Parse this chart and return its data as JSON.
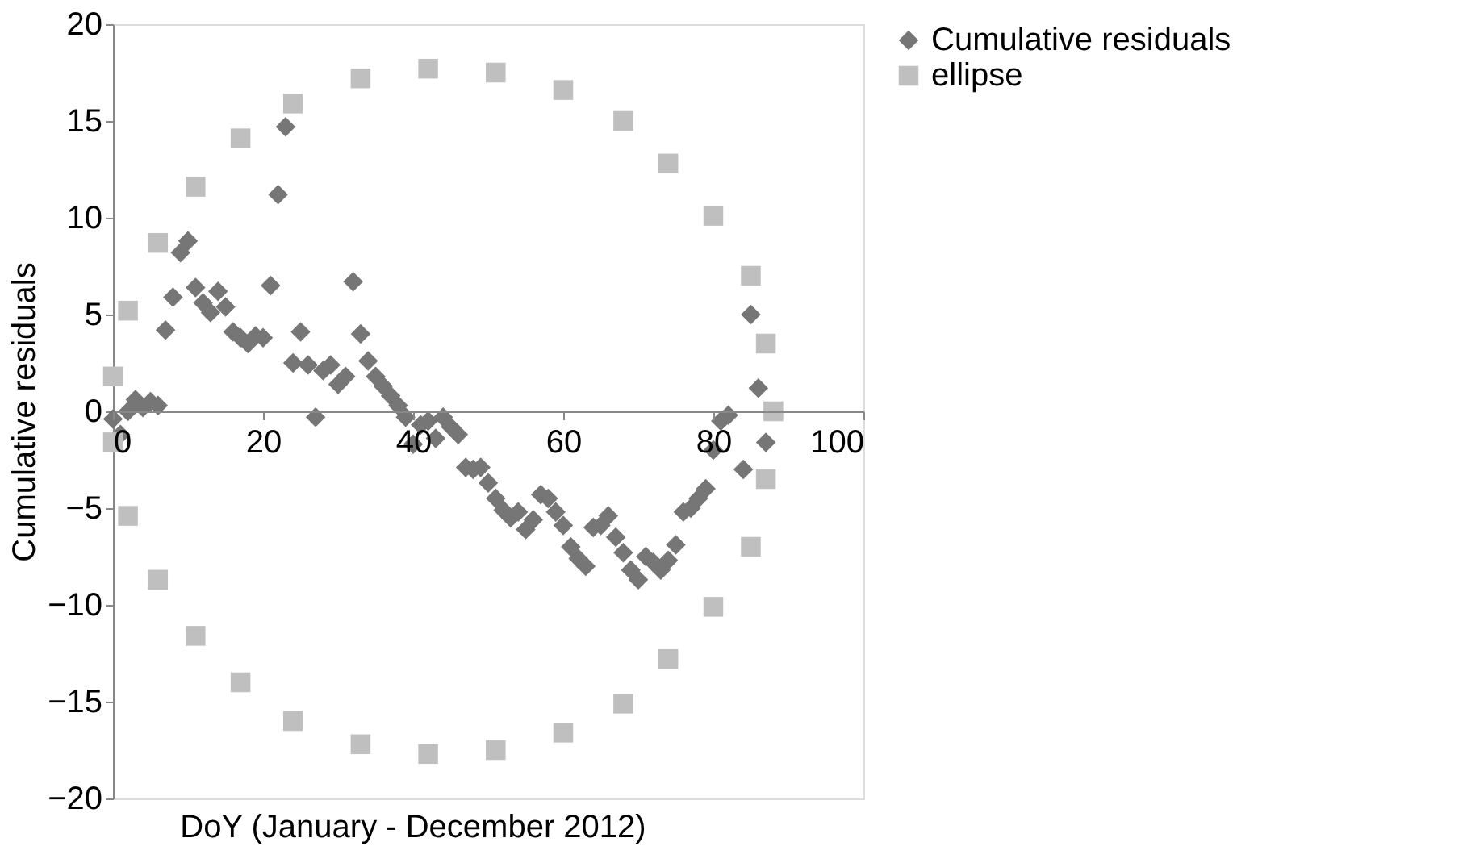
{
  "chart_data": {
    "type": "scatter",
    "xlabel": "DoY (January - December 2012)",
    "ylabel": "Cumulative residuals",
    "xlim": [
      0,
      100
    ],
    "xticks": [
      0,
      20,
      40,
      60,
      80,
      100
    ],
    "ylim": [
      -20,
      20
    ],
    "yticks": [
      -20,
      -15,
      -10,
      -5,
      0,
      5,
      10,
      15,
      20
    ],
    "grid": false,
    "legend": "right",
    "series": [
      {
        "name": "Cumulative residuals",
        "color": "#767676",
        "marker": "diamond",
        "x": [
          0,
          1,
          2,
          3,
          4,
          5,
          6,
          7,
          8,
          9,
          10,
          11,
          12,
          13,
          14,
          15,
          16,
          17,
          18,
          19,
          20,
          21,
          22,
          23,
          24,
          25,
          26,
          27,
          28,
          29,
          30,
          31,
          32,
          33,
          34,
          35,
          36,
          37,
          38,
          39,
          40,
          41,
          42,
          43,
          44,
          45,
          46,
          47,
          48,
          49,
          50,
          51,
          52,
          53,
          54,
          55,
          56,
          57,
          58,
          59,
          60,
          61,
          62,
          63,
          64,
          65,
          66,
          67,
          68,
          69,
          70,
          71,
          72,
          73,
          74,
          75,
          76,
          77,
          78,
          79,
          80,
          81,
          82,
          84,
          85,
          86,
          87
        ],
        "values": [
          -0.4,
          -1.2,
          0,
          0.6,
          0.2,
          0.5,
          0.3,
          4.2,
          5.9,
          8.2,
          8.8,
          6.4,
          5.6,
          5.1,
          6.2,
          5.4,
          4.1,
          3.8,
          3.5,
          3.9,
          3.8,
          6.5,
          11.2,
          14.7,
          2.5,
          4.1,
          2.4,
          -0.3,
          2.1,
          2.4,
          1.4,
          1.8,
          6.7,
          4.0,
          2.6,
          1.8,
          1.3,
          0.8,
          0.3,
          -0.3,
          -1.7,
          -0.7,
          -0.5,
          -1.4,
          -0.3,
          -0.8,
          -1.2,
          -2.9,
          -3.0,
          -2.9,
          -3.7,
          -4.5,
          -5.1,
          -5.5,
          -5.2,
          -6.1,
          -5.6,
          -4.3,
          -4.5,
          -5.2,
          -5.9,
          -7.0,
          -7.6,
          -8.0,
          -6.0,
          -5.9,
          -5.4,
          -6.5,
          -7.3,
          -8.2,
          -8.7,
          -7.5,
          -7.8,
          -8.2,
          -7.7,
          -6.9,
          -5.2,
          -5.0,
          -4.5,
          -4.0,
          -2.0,
          -0.5,
          -0.2,
          -3.0,
          5.0,
          1.2,
          -1.6
        ]
      },
      {
        "name": "ellipse",
        "color": "#bfbfbf",
        "marker": "square",
        "x": [
          0,
          2,
          6,
          11,
          17,
          24,
          33,
          42,
          51,
          60,
          68,
          74,
          80,
          85,
          87,
          88,
          0,
          2,
          6,
          11,
          17,
          24,
          33,
          42,
          51,
          60,
          68,
          74,
          80,
          85,
          87
        ],
        "values": [
          1.8,
          5.2,
          8.7,
          11.6,
          14.1,
          15.9,
          17.2,
          17.7,
          17.5,
          16.6,
          15.0,
          12.8,
          10.1,
          7.0,
          3.5,
          0,
          -1.6,
          -5.4,
          -8.7,
          -11.6,
          -14.0,
          -16.0,
          -17.2,
          -17.7,
          -17.5,
          -16.6,
          -15.1,
          -12.8,
          -10.1,
          -7.0,
          -3.5
        ]
      }
    ]
  }
}
